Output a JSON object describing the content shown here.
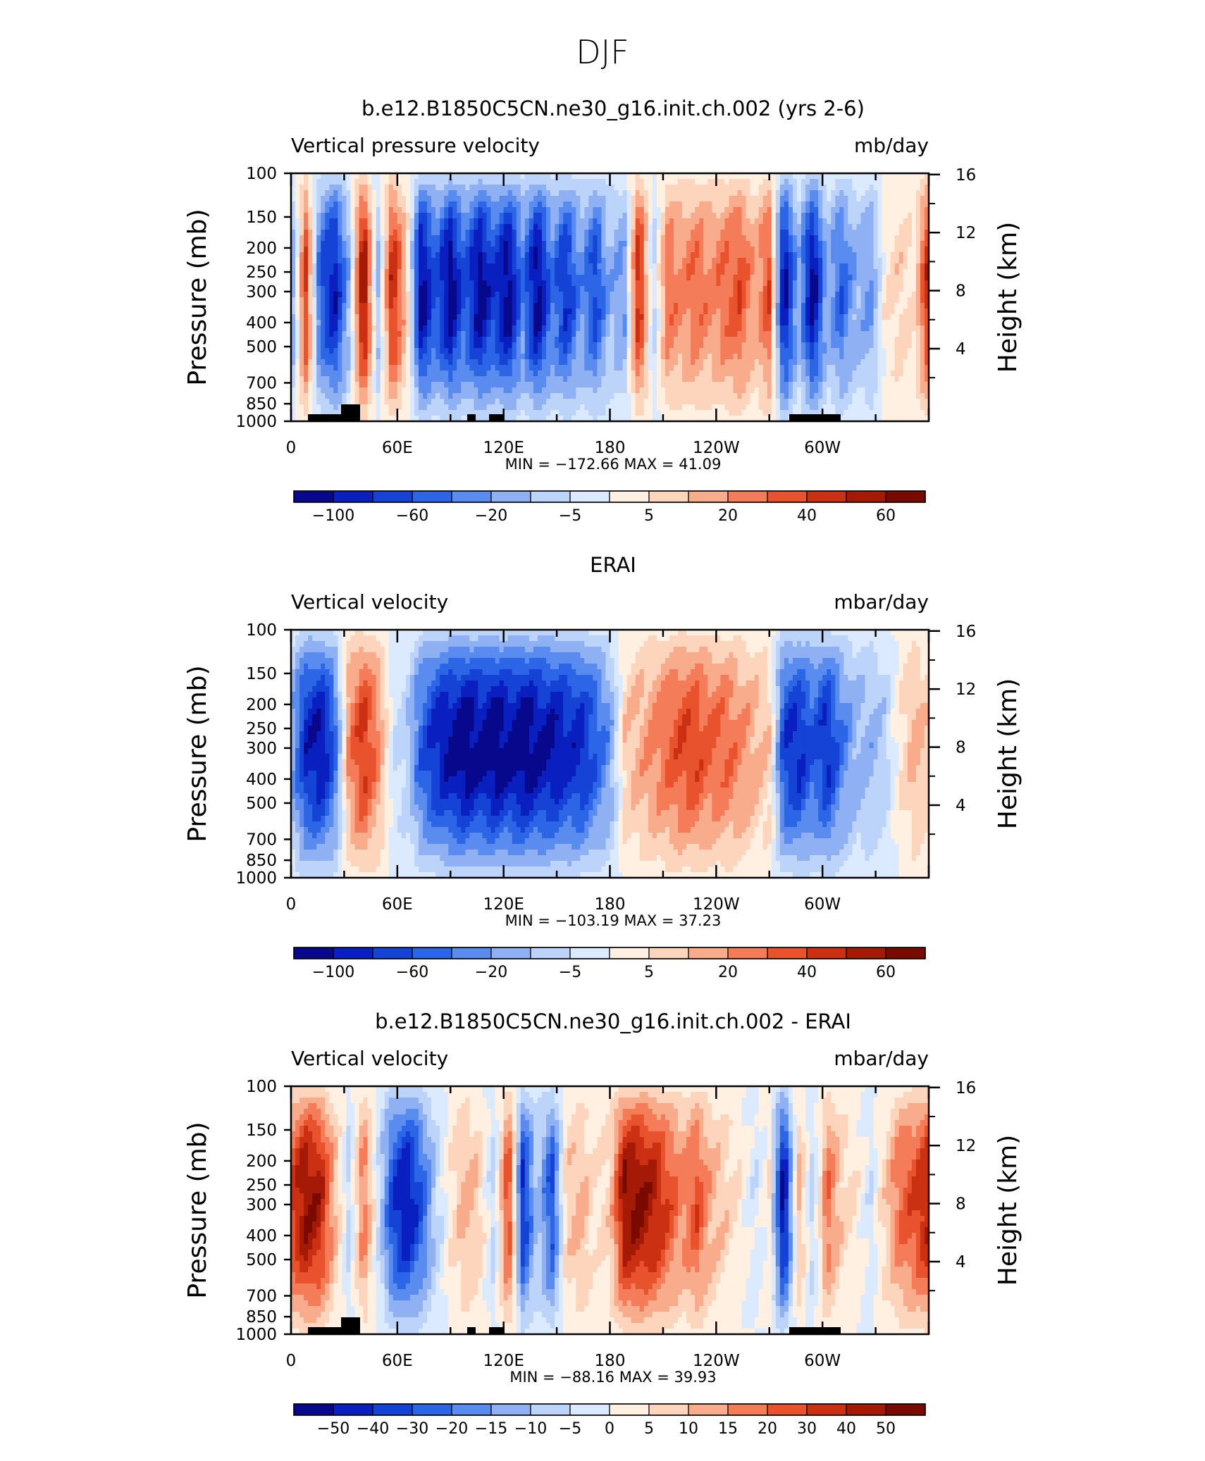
{
  "figure": {
    "title": "DJF"
  },
  "colors": {
    "neg": [
      "#08088c",
      "#0a1fbf",
      "#1543d6",
      "#2c66e6",
      "#5a8bef",
      "#8fb1f4",
      "#bdd4fa",
      "#dceaff"
    ],
    "pos": [
      "#fff0e2",
      "#fdd5bc",
      "#f9ac8c",
      "#f47c58",
      "#e8522c",
      "#cc3012",
      "#a51a06",
      "#7a0a00"
    ]
  },
  "chart_data": [
    {
      "type": "contour",
      "title": "b.e12.B1850C5CN.ne30_g16.init.ch.002 (yrs 2-6)",
      "left_label": "Vertical pressure velocity",
      "right_label": "mb/day",
      "ylabel": "Pressure (mb)",
      "ylabel_right": "Height (km)",
      "x_ticks": [
        "0",
        "60E",
        "120E",
        "180",
        "120W",
        "60W"
      ],
      "y_ticks": [
        "100",
        "150",
        "200",
        "250",
        "300",
        "400",
        "500",
        "700",
        "850",
        "1000"
      ],
      "height_ticks": [
        "16",
        "12",
        "8",
        "4"
      ],
      "stats": "MIN = −172.66   MAX =   41.09",
      "colorbar_labels": [
        "−100",
        "−60",
        "−20",
        "−5",
        "5",
        "20",
        "40",
        "60"
      ],
      "colorbar_label_slots": [
        1,
        3,
        5,
        7,
        9,
        11,
        13,
        15
      ],
      "profile": [
        -0.5,
        0.7,
        -0.6,
        -0.9,
        -0.3,
        1.0,
        -0.3,
        0.8,
        0.2,
        -1.0,
        -0.6,
        -1.0,
        -0.6,
        -1.0,
        -0.7,
        -1.0,
        -0.5,
        -1.0,
        -0.5,
        -0.8,
        -0.4,
        -0.7,
        -0.3,
        -0.4,
        0.8,
        -0.2,
        0.5,
        0.4,
        0.5,
        0.4,
        0.5,
        0.6,
        0.3,
        0.6,
        -1.0,
        -0.3,
        -1.0,
        -0.3,
        -0.6,
        -0.3,
        -0.4,
        0.1,
        0.2,
        0.1,
        0.8
      ],
      "terrain": true
    },
    {
      "type": "contour",
      "title": "ERAI",
      "left_label": "Vertical velocity",
      "right_label": "mbar/day",
      "ylabel": "Pressure (mb)",
      "ylabel_right": "Height (km)",
      "x_ticks": [
        "0",
        "60E",
        "120E",
        "180",
        "120W",
        "60W"
      ],
      "y_ticks": [
        "100",
        "150",
        "200",
        "250",
        "300",
        "400",
        "500",
        "700",
        "850",
        "1000"
      ],
      "height_ticks": [
        "16",
        "12",
        "8",
        "4"
      ],
      "stats": "MIN = −103.19   MAX =   37.23",
      "colorbar_labels": [
        "−100",
        "−60",
        "−20",
        "−5",
        "5",
        "20",
        "40",
        "60"
      ],
      "colorbar_label_slots": [
        1,
        3,
        5,
        7,
        9,
        11,
        13,
        15
      ],
      "profile": [
        -0.3,
        -0.8,
        -0.9,
        -0.6,
        0.4,
        0.7,
        0.4,
        -0.1,
        -0.2,
        -0.6,
        -0.8,
        -0.9,
        -1.0,
        -0.9,
        -1.0,
        -0.9,
        -1.0,
        -0.9,
        -0.9,
        -0.8,
        -0.8,
        -0.6,
        -0.4,
        0.2,
        0.3,
        0.4,
        0.5,
        0.6,
        0.6,
        0.5,
        0.5,
        0.4,
        0.3,
        0.2,
        -0.7,
        -0.8,
        -0.6,
        -0.8,
        -0.5,
        -0.3,
        -0.3,
        -0.2,
        0.1,
        0.3,
        0.2
      ],
      "terrain": false
    },
    {
      "type": "contour",
      "title": "b.e12.B1850C5CN.ne30_g16.init.ch.002 - ERAI",
      "left_label": "Vertical velocity",
      "right_label": "mbar/day",
      "ylabel": "Pressure (mb)",
      "ylabel_right": "Height (km)",
      "x_ticks": [
        "0",
        "60E",
        "120E",
        "180",
        "120W",
        "60W"
      ],
      "y_ticks": [
        "100",
        "150",
        "200",
        "250",
        "300",
        "400",
        "500",
        "700",
        "850",
        "1000"
      ],
      "height_ticks": [
        "16",
        "12",
        "8",
        "4"
      ],
      "stats": "MIN = −88.16   MAX =   39.93",
      "colorbar_labels": [
        "−50",
        "−40",
        "−30",
        "−20",
        "−15",
        "−10",
        "−5",
        "0",
        "5",
        "10",
        "15",
        "20",
        "30",
        "40",
        "50"
      ],
      "colorbar_label_slots": [
        1,
        2,
        3,
        4,
        5,
        6,
        7,
        8,
        9,
        10,
        11,
        12,
        13,
        14,
        15
      ],
      "profile": [
        0.6,
        0.9,
        0.8,
        0.3,
        -0.2,
        0.5,
        -0.1,
        -0.7,
        -0.9,
        -0.6,
        -0.2,
        0.1,
        0.3,
        0.2,
        -0.2,
        0.7,
        -0.8,
        -0.2,
        -0.7,
        0.2,
        0.3,
        0.1,
        0.2,
        0.9,
        0.9,
        0.8,
        0.6,
        0.4,
        0.6,
        0.3,
        0.2,
        0.1,
        -0.1,
        0.1,
        -1.0,
        0.3,
        -0.2,
        0.5,
        0.2,
        0.1,
        -0.1,
        0.2,
        0.5,
        0.6,
        0.8
      ],
      "terrain": true
    }
  ]
}
